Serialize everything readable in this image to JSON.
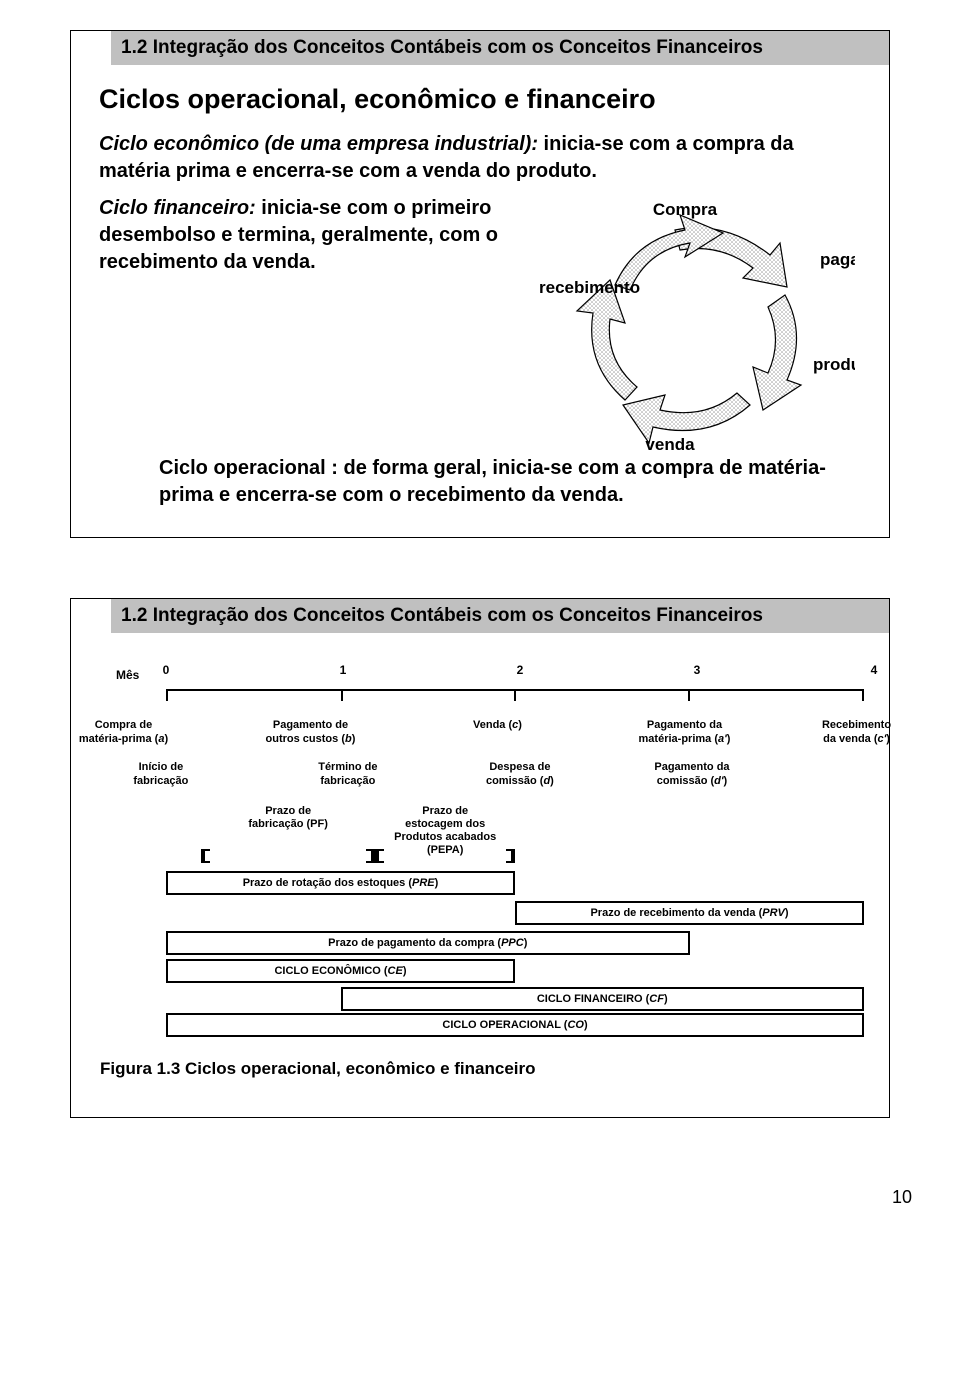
{
  "page_number": "10",
  "panel1": {
    "header": "1.2 Integração dos Conceitos Contábeis com os Conceitos Financeiros",
    "title": "Ciclos operacional, econômico e financeiro",
    "p1_a": "Ciclo econômico (de uma empresa industrial):",
    "p1_b": " inicia-se com a compra da matéria prima e encerra-se com a venda do produto.",
    "p2_a": "Ciclo financeiro:",
    "p2_b": " inicia-se com o primeiro desembolso e termina, geralmente, com o recebimento da venda.",
    "p3_a": "Ciclo operacional",
    "p3_b": " : de forma geral, inicia-se com a compra de matéria-prima e encerra-se com o recebimento da venda.",
    "cycle": {
      "top": "Compra",
      "right_upper": "pagamento",
      "right_lower": "produção",
      "bottom": "venda",
      "left": "recebimento",
      "arrow_fill": "#ffffff",
      "arrow_hatch": "#9a9a9a",
      "arrow_stroke": "#000000"
    }
  },
  "panel2": {
    "header": "1.2 Integração dos Conceitos Contábeis com os Conceitos Financeiros",
    "mes_label": "Mês",
    "months": [
      "0",
      "1",
      "2",
      "3",
      "4"
    ],
    "events_row1": [
      {
        "pos_pct": 1,
        "l1": "Compra de",
        "l2": "matéria-prima (",
        "it": "a",
        "l3": ")"
      },
      {
        "pos_pct": 26,
        "l1": "Pagamento de",
        "l2": "outros custos (",
        "it": "b",
        "l3": ")"
      },
      {
        "pos_pct": 51,
        "l1": "Venda (",
        "it": "c",
        "l2": ")",
        "single": true
      },
      {
        "pos_pct": 76,
        "l1": "Pagamento da",
        "l2": "matéria-prima (",
        "it": "a'",
        "l3": ")"
      },
      {
        "pos_pct": 99,
        "l1": "Recebimento",
        "l2": "da venda (",
        "it": "c'",
        "l3": ")"
      }
    ],
    "events_row2": [
      {
        "pos_pct": 6,
        "l1": "Início de",
        "l2": "fabricação"
      },
      {
        "pos_pct": 31,
        "l1": "Término de",
        "l2": "fabricação"
      },
      {
        "pos_pct": 54,
        "l1": "Despesa de",
        "l2": "comissão (",
        "it": "d",
        "l3": ")"
      },
      {
        "pos_pct": 77,
        "l1": "Pagamento da",
        "l2": "comissão (",
        "it": "d'",
        "l3": ")"
      }
    ],
    "bars": {
      "pf": {
        "left_pct": 5,
        "right_pct": 30,
        "label_l1": "Prazo de",
        "label_l2": "fabricação (",
        "label_it": "PF",
        "label_l3": ")"
      },
      "pepa": {
        "left_pct": 30,
        "right_pct": 50,
        "label_l1": "Prazo de",
        "label_l2": "estocagem dos",
        "label_l3": "Produtos acabados",
        "label_l4": "(",
        "label_it": "PEPA",
        "label_l5": ")"
      },
      "pre": {
        "left_pct": 0,
        "right_pct": 50,
        "label": "Prazo de rotação dos estoques (",
        "it": "PRE",
        "after": ")"
      },
      "prv": {
        "left_pct": 50,
        "right_pct": 100,
        "label": "Prazo de recebimento da venda (",
        "it": "PRV",
        "after": ")"
      },
      "ppc": {
        "left_pct": 0,
        "right_pct": 75,
        "label": "Prazo de pagamento da compra (",
        "it": "PPC",
        "after": ")"
      },
      "ce": {
        "left_pct": 0,
        "right_pct": 50,
        "label": "CICLO ECONÔMICO (",
        "it": "CE",
        "after": ")"
      },
      "cf": {
        "left_pct": 25,
        "right_pct": 100,
        "label": "CICLO FINANCEIRO (",
        "it": "CF",
        "after": ")"
      },
      "co": {
        "left_pct": 0,
        "right_pct": 100,
        "label": "CICLO OPERACIONAL (",
        "it": "CO",
        "after": ")"
      }
    },
    "caption": "Figura 1.3 Ciclos operacional, econômico e financeiro"
  },
  "style": {
    "header_bg": "#c0c0c0",
    "text_color": "#000000",
    "page_bg": "#ffffff"
  }
}
